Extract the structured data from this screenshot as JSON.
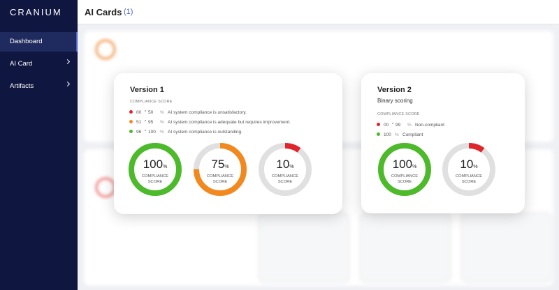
{
  "sidebar": {
    "logo": "CRANIUM",
    "nav": [
      {
        "label": "Dashboard",
        "active": true,
        "chevron": false
      },
      {
        "label": "AI Card",
        "active": false,
        "chevron": true
      },
      {
        "label": "Artifacts",
        "active": false,
        "chevron": true
      }
    ]
  },
  "header": {
    "title": "AI Cards",
    "count": "(1)"
  },
  "cards": [
    {
      "title": "Version 1",
      "score_label": "COMPLIANCE SCORE",
      "ranges": [
        {
          "from": "00",
          "to": 50,
          "unit": "%",
          "text": "AI system compliance is unsatisfactory.",
          "color": "#e0262d"
        },
        {
          "from": 51,
          "to": 95,
          "unit": "%",
          "text": "AI system compliance is adequate but requires improvement.",
          "color": "#f2891f"
        },
        {
          "from": 96,
          "to": 100,
          "unit": "%",
          "text": "AI system compliance is outstanding.",
          "color": "#4cba2a"
        }
      ],
      "gauges": [
        {
          "value": 100,
          "unit": "%",
          "label": "COMPLIANCE SCORE",
          "color": "#4cba2a"
        },
        {
          "value": 75,
          "unit": "%",
          "label": "COMPLIANCE SCORE",
          "color": "#f2891f"
        },
        {
          "value": 10,
          "unit": "%",
          "label": "COMPLIANCE SCORE",
          "color": "#e0262d"
        }
      ]
    },
    {
      "title": "Version 2",
      "subtitle": "Binary scoring",
      "score_label": "COMPLIANCE SCORE",
      "ranges": [
        {
          "from": "00",
          "to": 99,
          "unit": "%",
          "text": "Non-compliant",
          "color": "#e0262d"
        },
        {
          "from": 100,
          "unit": "%",
          "text": "Compliant",
          "color": "#4cba2a"
        }
      ],
      "gauges": [
        {
          "value": 100,
          "unit": "%",
          "label": "COMPLIANCE SCORE",
          "color": "#4cba2a"
        },
        {
          "value": 10,
          "unit": "%",
          "label": "COMPLIANCE SCORE",
          "color": "#e0262d"
        }
      ]
    }
  ]
}
